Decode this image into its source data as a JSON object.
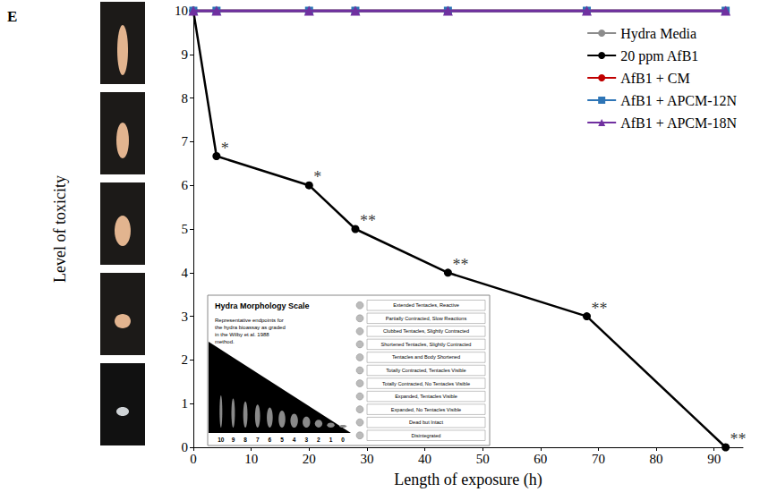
{
  "chart_data": {
    "type": "line",
    "panel_label": "E",
    "x_label": "Length of exposure (h)",
    "y_label": "Level of toxicity",
    "x": [
      0,
      4,
      20,
      28,
      44,
      68,
      92
    ],
    "xlim": [
      0,
      95
    ],
    "xticks": [
      0,
      10,
      20,
      30,
      40,
      50,
      60,
      70,
      80,
      90
    ],
    "ylim": [
      0,
      10
    ],
    "yticks": [
      0,
      1,
      2,
      3,
      4,
      5,
      6,
      7,
      8,
      9,
      10
    ],
    "grid": false,
    "legend": "top-right",
    "series": [
      {
        "name": "Hydra Media",
        "color": "#8c8c8c",
        "marker": "circle",
        "values": [
          10,
          10,
          10,
          10,
          10,
          10,
          10
        ]
      },
      {
        "name": "20 ppm AfB1",
        "color": "#000000",
        "marker": "circle",
        "values": [
          10,
          6.67,
          6,
          5,
          4,
          3,
          0
        ]
      },
      {
        "name": "AfB1 + CM",
        "color": "#c00000",
        "marker": "none",
        "values": [
          10,
          10,
          10,
          10,
          10,
          10,
          10
        ]
      },
      {
        "name": "AfB1 + APCM-12N",
        "color": "#2e75b6",
        "marker": "square",
        "values": [
          10,
          10,
          10,
          10,
          10,
          10,
          10
        ]
      },
      {
        "name": "AfB1 + APCM-18N",
        "color": "#7030a0",
        "marker": "triangle",
        "values": [
          10,
          10,
          10,
          10,
          10,
          10,
          10
        ]
      }
    ],
    "annotations": [
      {
        "x": 4,
        "y": 6.67,
        "text": "*"
      },
      {
        "x": 20,
        "y": 6,
        "text": "*"
      },
      {
        "x": 28,
        "y": 5,
        "text": "**"
      },
      {
        "x": 44,
        "y": 4,
        "text": "**"
      },
      {
        "x": 68,
        "y": 3,
        "text": "**"
      },
      {
        "x": 92,
        "y": 0,
        "text": "**"
      }
    ],
    "inset": {
      "title": "Hydra Morphology Scale",
      "caption": "Representative endpoints for the hydra bioassay as graded in the Wilby et al. 1988 method.",
      "scale_numbers": [
        10,
        9,
        8,
        7,
        6,
        5,
        4,
        3,
        2,
        1,
        0
      ],
      "scale_labels": [
        "Extended Tentacles, Reactive",
        "Partially Contracted, Slow Reactions",
        "Clubbed Tentacles, Slightly Contracted",
        "Shortened Tentacles, Slightly Contracted",
        "Tentacles and Body Shortened",
        "Totally Contracted, Tentacles Visible",
        "Totally Contracted, No Tentacles Visible",
        "Expanded, Tentacles Visible",
        "Expanded, No Tentacles Visible",
        "Dead but Intact",
        "Disintegrated"
      ]
    }
  }
}
